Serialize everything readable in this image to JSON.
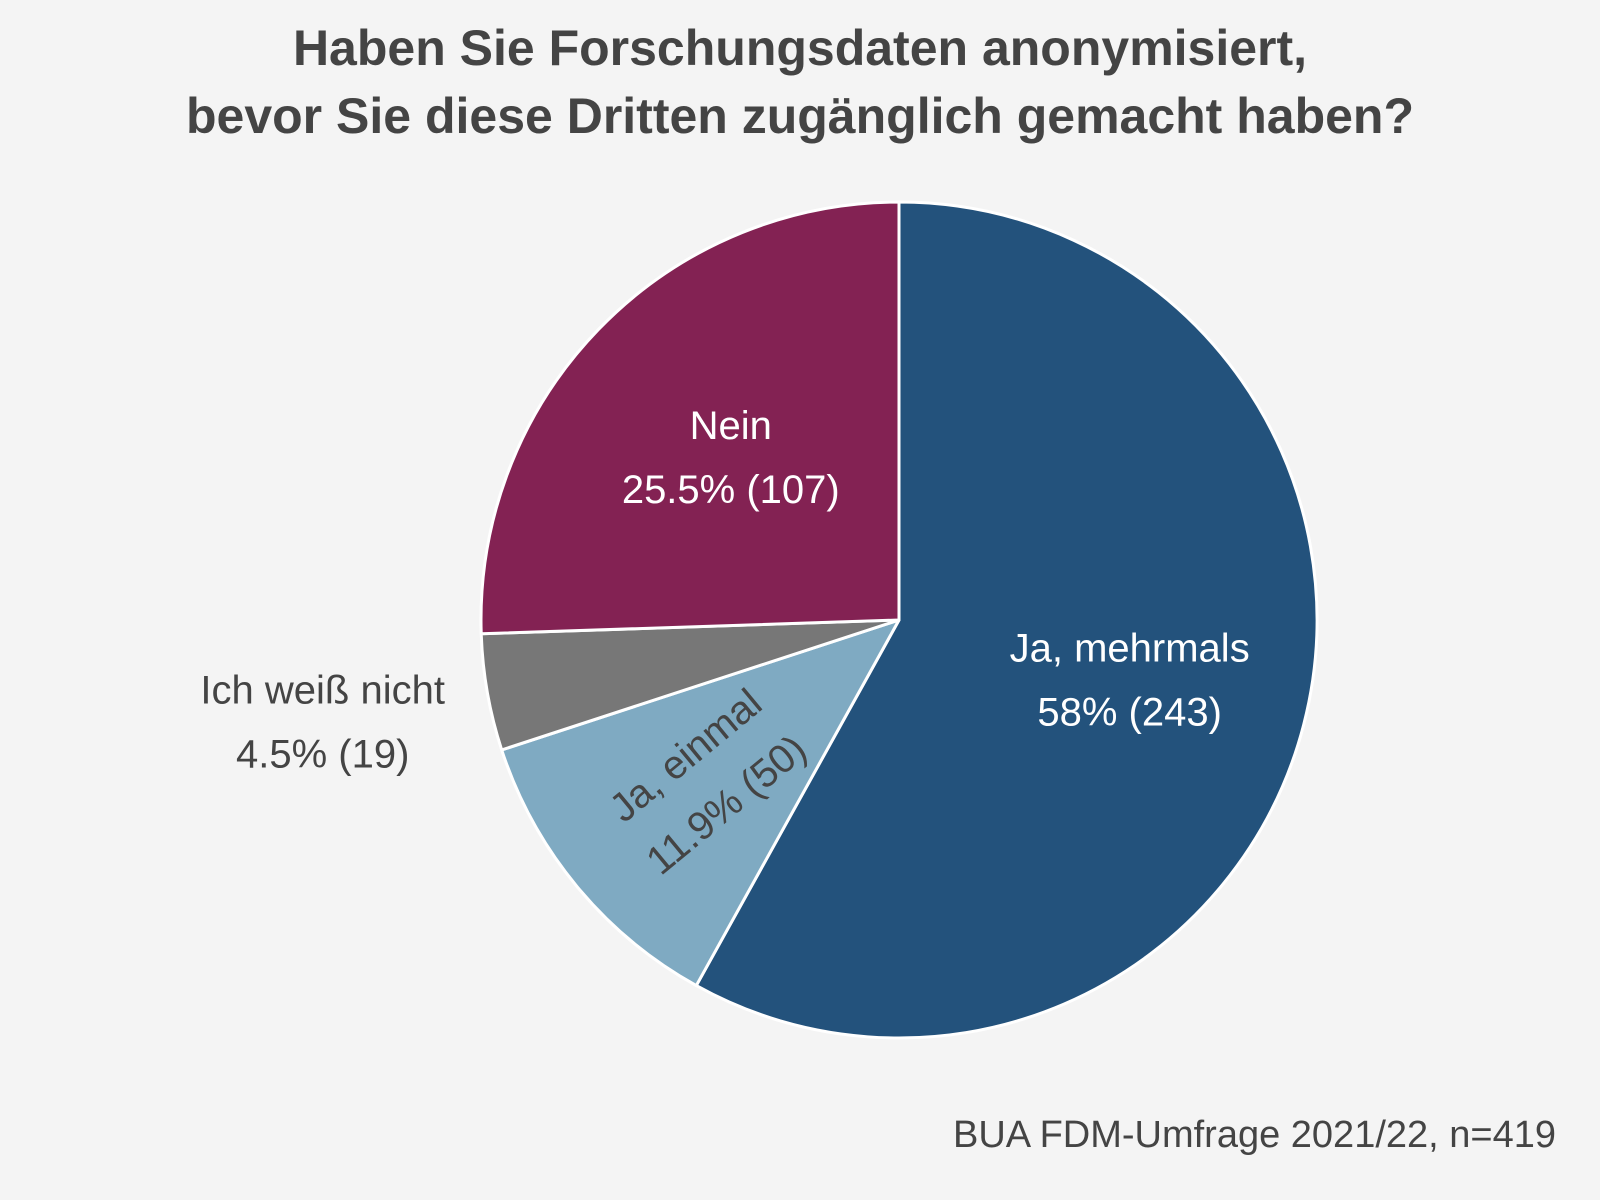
{
  "chart_data": {
    "type": "pie",
    "title": [
      "Haben Sie Forschungsdaten anonymisiert,",
      "bevor Sie diese Dritten zugänglich gemacht haben?"
    ],
    "n": 419,
    "slices": [
      {
        "label": "Ja, mehrmals",
        "percent": 58,
        "count": 243,
        "value_text": "58% (243)",
        "color": "#23527c",
        "label_color": "#ffffff"
      },
      {
        "label": "Ja, einmal",
        "percent": 11.9,
        "count": 50,
        "value_text": "11.9% (50)",
        "color": "#7faac2",
        "label_color": "#444444"
      },
      {
        "label": "Ich weiß nicht",
        "percent": 4.5,
        "count": 19,
        "value_text": "4.5% (19)",
        "color": "#777777",
        "label_color": "#444444"
      },
      {
        "label": "Nein",
        "percent": 25.5,
        "count": 107,
        "value_text": "25.5% (107)",
        "color": "#832253",
        "label_color": "#ffffff"
      }
    ],
    "source": "BUA FDM-Umfrage 2021/22, n=419"
  }
}
